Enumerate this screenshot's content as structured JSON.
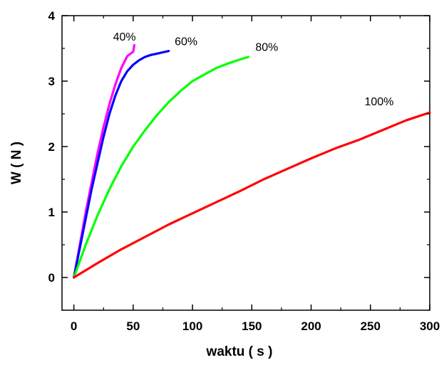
{
  "chart_data": {
    "type": "line",
    "title": "",
    "xlabel": "waktu ( s )",
    "ylabel": "W ( N )",
    "xlim": [
      -10,
      300
    ],
    "ylim": [
      -0.5,
      4
    ],
    "xticks": [
      0,
      50,
      100,
      150,
      200,
      250,
      300
    ],
    "yticks": [
      0,
      1,
      2,
      3,
      4
    ],
    "grid": false,
    "legend": "none",
    "series": [
      {
        "name": "40%",
        "color": "#ff00ff",
        "x": [
          0,
          5,
          10,
          15,
          20,
          25,
          30,
          35,
          40,
          45,
          50,
          51
        ],
        "y": [
          0,
          0.5,
          1.0,
          1.45,
          1.9,
          2.3,
          2.65,
          2.95,
          3.2,
          3.38,
          3.45,
          3.55
        ]
      },
      {
        "name": "60%",
        "color": "#0000ff",
        "x": [
          0,
          5,
          10,
          15,
          20,
          25,
          30,
          35,
          40,
          45,
          50,
          55,
          60,
          65,
          70,
          75,
          80
        ],
        "y": [
          0,
          0.45,
          0.9,
          1.35,
          1.75,
          2.15,
          2.5,
          2.78,
          3.0,
          3.15,
          3.25,
          3.32,
          3.37,
          3.4,
          3.42,
          3.44,
          3.46
        ]
      },
      {
        "name": "80%",
        "color": "#00ff00",
        "x": [
          0,
          10,
          20,
          30,
          40,
          50,
          60,
          70,
          80,
          90,
          100,
          110,
          120,
          130,
          140,
          147
        ],
        "y": [
          0,
          0.5,
          0.95,
          1.35,
          1.7,
          2.0,
          2.25,
          2.48,
          2.68,
          2.85,
          3.0,
          3.1,
          3.2,
          3.27,
          3.33,
          3.37
        ]
      },
      {
        "name": "100%",
        "color": "#ff0000",
        "x": [
          0,
          20,
          40,
          60,
          80,
          100,
          120,
          140,
          160,
          180,
          200,
          220,
          240,
          260,
          280,
          300
        ],
        "y": [
          0,
          0.22,
          0.43,
          0.62,
          0.81,
          0.98,
          1.15,
          1.32,
          1.5,
          1.66,
          1.82,
          1.97,
          2.1,
          2.25,
          2.4,
          2.52
        ]
      }
    ]
  }
}
